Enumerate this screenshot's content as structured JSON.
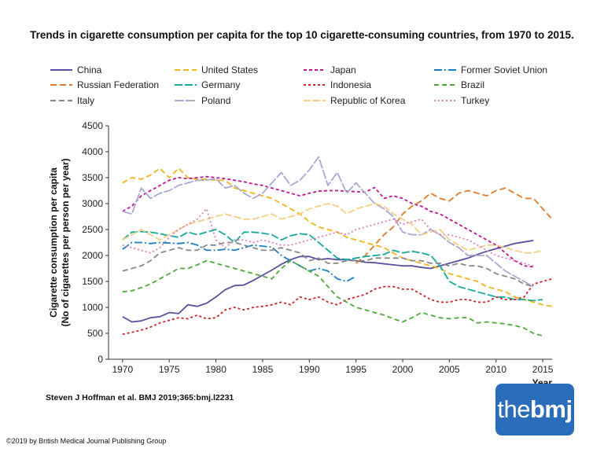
{
  "title": "Trends in cigarette consumption per capita for the top 10 cigarette-consuming countries, from 1970 to 2015.",
  "citation": "Steven J Hoffman et al. BMJ 2019;365:bmj.l2231",
  "copyright": "©2019 by British Medical Journal Publishing Group",
  "logo": {
    "thin": "the",
    "bold": "bmj"
  },
  "chart_data": {
    "type": "line",
    "title": "Trends in cigarette consumption per capita for the top 10 cigarette-consuming countries, from 1970 to 2015.",
    "xlabel": "Year",
    "ylabel_line1": "Cigarette consumption per capita",
    "ylabel_line2": "(No of cigarettes per person per year)",
    "xlim": [
      1968.5,
      2016
    ],
    "ylim": [
      0,
      4500
    ],
    "xticks": [
      1970,
      1975,
      1980,
      1985,
      1990,
      1995,
      2000,
      2005,
      2010,
      2015
    ],
    "yticks": [
      0,
      500,
      1000,
      1500,
      2000,
      2500,
      3000,
      3500,
      4000,
      4500
    ],
    "grid": false,
    "legend_position": "top",
    "series": [
      {
        "name": "China",
        "color": "#5b4ea0",
        "dash": "",
        "x0": 1970,
        "values": [
          820,
          720,
          740,
          800,
          820,
          900,
          880,
          1050,
          1020,
          1080,
          1200,
          1340,
          1420,
          1430,
          1520,
          1620,
          1720,
          1830,
          1920,
          1980,
          1980,
          1920,
          1940,
          1920,
          1920,
          1900,
          1870,
          1860,
          1840,
          1820,
          1800,
          1800,
          1770,
          1750,
          1800,
          1850,
          1900,
          1950,
          2020,
          2080,
          2130,
          2180,
          2230,
          2260,
          2290
        ]
      },
      {
        "name": "United States",
        "color": "#f2b51a",
        "dash": "7,4",
        "x0": 1970,
        "values": [
          3400,
          3500,
          3470,
          3550,
          3680,
          3500,
          3680,
          3500,
          3470,
          3470,
          3450,
          3450,
          3300,
          3250,
          3200,
          3150,
          3100,
          3000,
          2900,
          2800,
          2650,
          2550,
          2500,
          2450,
          2350,
          2300,
          2250,
          2200,
          2150,
          2050,
          1950,
          1900,
          1850,
          1800,
          1750,
          1650,
          1600,
          1550,
          1500,
          1400,
          1350,
          1300,
          1200,
          1150,
          1100,
          1050,
          1020
        ]
      },
      {
        "name": "Japan",
        "color": "#c0158f",
        "dash": "4,3",
        "x0": 1970,
        "values": [
          2850,
          2950,
          3150,
          3250,
          3350,
          3450,
          3500,
          3480,
          3500,
          3520,
          3500,
          3480,
          3450,
          3420,
          3380,
          3350,
          3300,
          3250,
          3200,
          3150,
          3200,
          3240,
          3250,
          3250,
          3240,
          3230,
          3220,
          3310,
          3100,
          3150,
          3100,
          3000,
          2950,
          2850,
          2800,
          2700,
          2600,
          2500,
          2400,
          2300,
          2200,
          2050,
          1900,
          1800,
          1780
        ]
      },
      {
        "name": "Former Soviet Union",
        "color": "#1a7fc1",
        "dash": "10,3,2,3",
        "x0": 1970,
        "values": [
          2120,
          2250,
          2250,
          2230,
          2250,
          2240,
          2230,
          2250,
          2200,
          2100,
          2100,
          2120,
          2100,
          2150,
          2200,
          2180,
          2160,
          2000,
          1900,
          1800,
          1700,
          1750,
          1700,
          1550,
          1500,
          1600
        ]
      },
      {
        "name": "Russian Federation",
        "color": "#e07b2b",
        "dash": "8,4",
        "x0": 1995,
        "values": [
          1850,
          2000,
          2200,
          2400,
          2550,
          2800,
          2950,
          3050,
          3200,
          3100,
          3050,
          3200,
          3250,
          3200,
          3150,
          3250,
          3300,
          3200,
          3100,
          3100,
          2900,
          2700
        ]
      },
      {
        "name": "Germany",
        "color": "#17a99b",
        "dash": "10,3",
        "x0": 1970,
        "values": [
          2300,
          2450,
          2460,
          2450,
          2420,
          2380,
          2350,
          2450,
          2400,
          2450,
          2500,
          2400,
          2250,
          2450,
          2450,
          2430,
          2400,
          2300,
          2380,
          2420,
          2400,
          2250,
          2100,
          1950,
          1920,
          1950,
          1980,
          2000,
          2020,
          2100,
          2050,
          2080,
          2050,
          2000,
          1800,
          1500,
          1400,
          1350,
          1300,
          1250,
          1200,
          1200,
          1150,
          1150,
          1130,
          1150
        ]
      },
      {
        "name": "Indonesia",
        "color": "#d11f26",
        "dash": "3,3",
        "x0": 1970,
        "values": [
          480,
          520,
          560,
          620,
          700,
          750,
          800,
          780,
          850,
          780,
          800,
          950,
          1000,
          950,
          1000,
          1020,
          1050,
          1100,
          1050,
          1200,
          1150,
          1200,
          1100,
          1050,
          1150,
          1200,
          1250,
          1350,
          1400,
          1400,
          1350,
          1350,
          1250,
          1150,
          1100,
          1100,
          1150,
          1150,
          1100,
          1100,
          1200,
          1150,
          1150,
          1200,
          1450,
          1500,
          1550
        ]
      },
      {
        "name": "Brazil",
        "color": "#4caa3a",
        "dash": "6,4",
        "x0": 1970,
        "values": [
          1300,
          1320,
          1380,
          1450,
          1550,
          1650,
          1750,
          1750,
          1820,
          1900,
          1850,
          1800,
          1750,
          1700,
          1650,
          1600,
          1550,
          1750,
          1900,
          1800,
          1700,
          1600,
          1400,
          1200,
          1100,
          1000,
          950,
          900,
          850,
          780,
          720,
          800,
          900,
          850,
          800,
          780,
          800,
          800,
          700,
          720,
          700,
          680,
          650,
          600,
          500,
          450
        ]
      },
      {
        "name": "Italy",
        "color": "#888888",
        "dash": "7,4",
        "x0": 1970,
        "values": [
          1700,
          1750,
          1800,
          1900,
          2050,
          2100,
          2150,
          2100,
          2100,
          2200,
          2200,
          2250,
          2250,
          2200,
          2150,
          2100,
          2100,
          2150,
          2100,
          2050,
          1900,
          1950,
          1850,
          1850,
          1900,
          1900,
          1900,
          1950,
          1950,
          1950,
          1950,
          1900,
          1900,
          1850,
          1850,
          1800,
          1850,
          1800,
          1800,
          1750,
          1650,
          1600,
          1550,
          1450,
          1400
        ]
      },
      {
        "name": "Poland",
        "color": "#a9a9d2",
        "dash": "12,2",
        "x0": 1970,
        "values": [
          2850,
          2800,
          3300,
          3100,
          3200,
          3250,
          3350,
          3400,
          3450,
          3450,
          3480,
          3300,
          3350,
          3200,
          3100,
          3200,
          3400,
          3600,
          3350,
          3450,
          3650,
          3900,
          3350,
          3600,
          3200,
          3400,
          3200,
          3000,
          2900,
          2750,
          2450,
          2400,
          2400,
          2500,
          2400,
          2250,
          2150,
          2000,
          2000,
          2000,
          1850,
          1700,
          1600,
          1500,
          1400
        ]
      },
      {
        "name": "Republic of Korea",
        "color": "#f5cf85",
        "dash": "9,3",
        "x0": 1970,
        "values": [
          2300,
          2400,
          2500,
          2400,
          2300,
          2400,
          2500,
          2600,
          2650,
          2700,
          2750,
          2800,
          2750,
          2700,
          2700,
          2750,
          2800,
          2700,
          2750,
          2800,
          2900,
          2950,
          3000,
          2950,
          2800,
          2900,
          2950,
          3000,
          2950,
          2800,
          2700,
          2600,
          2400,
          2450,
          2500,
          2300,
          2200,
          2100,
          2150,
          2200,
          2200,
          2150,
          2100,
          2050,
          2050,
          2100
        ]
      },
      {
        "name": "Turkey",
        "color": "#e27fb6",
        "dash": "2,3",
        "x0": 1970,
        "values": [
          2200,
          2150,
          2100,
          2050,
          2150,
          2350,
          2500,
          2600,
          2700,
          2900,
          2300,
          2150,
          2300,
          2300,
          2250,
          2300,
          2250,
          2200,
          2200,
          2250,
          2300,
          2350,
          2400,
          2450,
          2400,
          2500,
          2550,
          2600,
          2650,
          2700,
          2600,
          2650,
          2700,
          2500,
          2400,
          2400,
          2350,
          2300,
          2200,
          2100,
          2000,
          1950,
          1900,
          1850,
          1800
        ]
      }
    ]
  }
}
